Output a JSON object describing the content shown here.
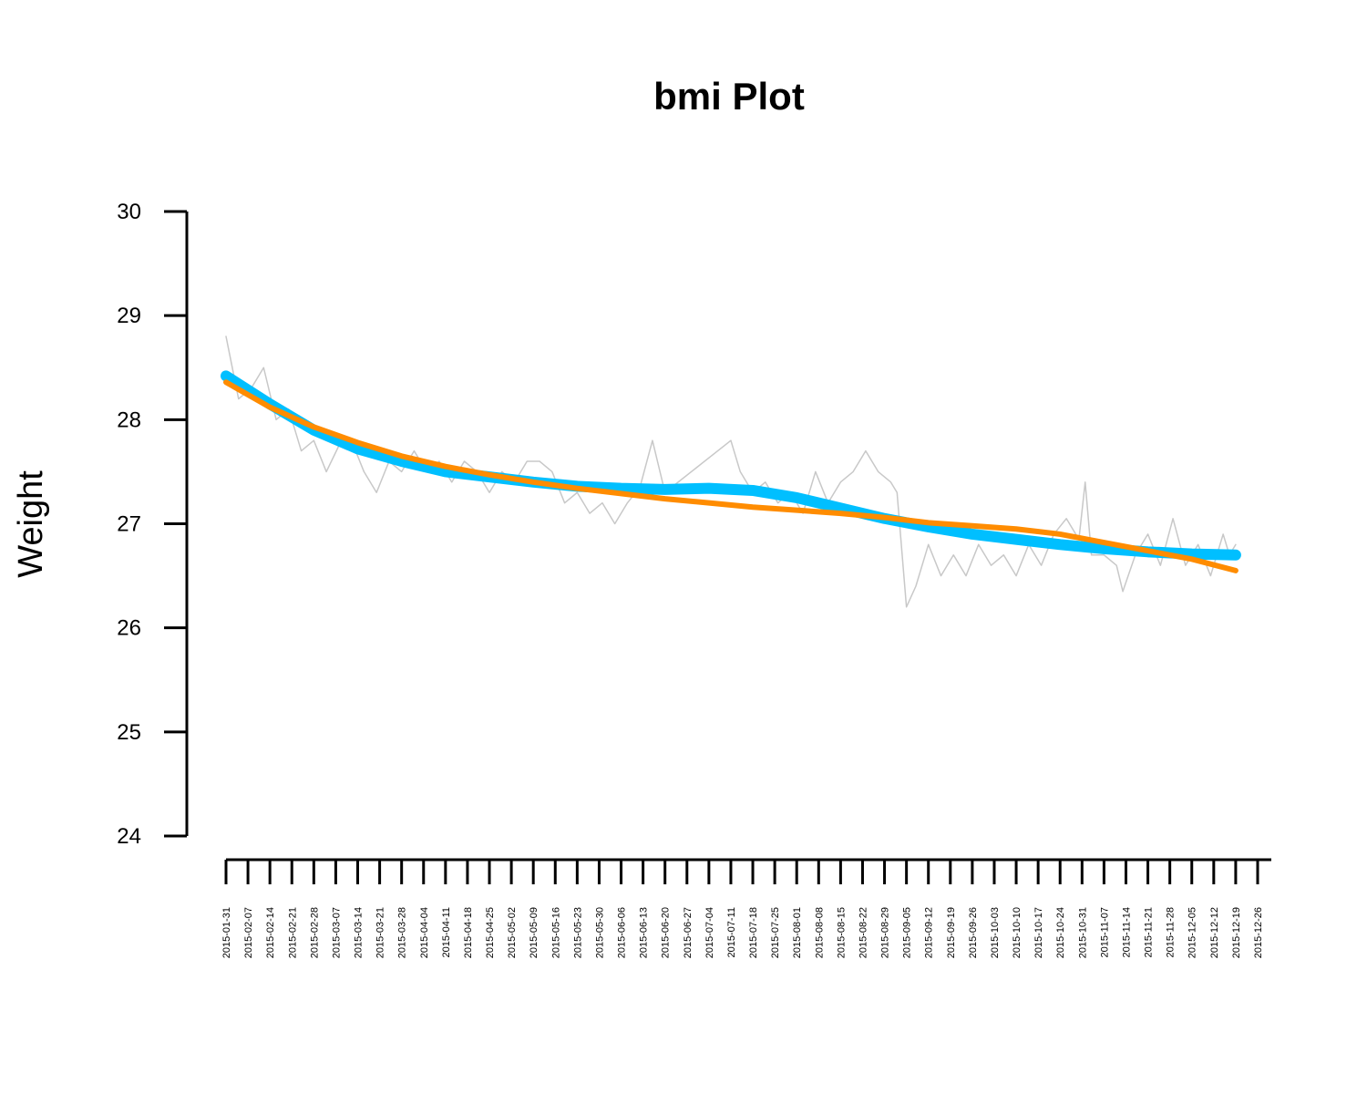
{
  "chart_data": {
    "type": "line",
    "title": "bmi Plot",
    "y_label": "Weight",
    "ylim": [
      24,
      30
    ],
    "yticks": [
      24,
      25,
      26,
      27,
      28,
      29,
      30
    ],
    "xlim": [
      "2015-01-31",
      "2015-12-26"
    ],
    "xticks": [
      "2015-01-31",
      "2015-02-07",
      "2015-02-14",
      "2015-02-21",
      "2015-02-28",
      "2015-03-07",
      "2015-03-14",
      "2015-03-21",
      "2015-03-28",
      "2015-04-04",
      "2015-04-11",
      "2015-04-18",
      "2015-04-25",
      "2015-05-02",
      "2015-05-09",
      "2015-05-16",
      "2015-05-23",
      "2015-05-30",
      "2015-06-06",
      "2015-06-13",
      "2015-06-20",
      "2015-06-27",
      "2015-07-04",
      "2015-07-11",
      "2015-07-18",
      "2015-07-25",
      "2015-08-01",
      "2015-08-08",
      "2015-08-15",
      "2015-08-22",
      "2015-08-29",
      "2015-09-05",
      "2015-09-12",
      "2015-09-19",
      "2015-09-26",
      "2015-10-03",
      "2015-10-10",
      "2015-10-17",
      "2015-10-24",
      "2015-10-31",
      "2015-11-07",
      "2015-11-14",
      "2015-11-21",
      "2015-11-28",
      "2015-12-05",
      "2015-12-12",
      "2015-12-19",
      "2015-12-26"
    ],
    "grid": false,
    "series": [
      {
        "color": "#c8c8c8",
        "line_width": 1.5,
        "x": [
          "2015-01-31",
          "2015-02-04",
          "2015-02-08",
          "2015-02-12",
          "2015-02-16",
          "2015-02-20",
          "2015-02-24",
          "2015-02-28",
          "2015-03-04",
          "2015-03-08",
          "2015-03-12",
          "2015-03-16",
          "2015-03-20",
          "2015-03-24",
          "2015-03-28",
          "2015-04-01",
          "2015-04-05",
          "2015-04-09",
          "2015-04-13",
          "2015-04-17",
          "2015-04-21",
          "2015-04-25",
          "2015-04-29",
          "2015-05-03",
          "2015-05-07",
          "2015-05-11",
          "2015-05-15",
          "2015-05-19",
          "2015-05-23",
          "2015-05-27",
          "2015-05-31",
          "2015-06-04",
          "2015-06-08",
          "2015-06-12",
          "2015-06-16",
          "2015-06-20",
          "2015-07-11",
          "2015-07-14",
          "2015-07-18",
          "2015-07-22",
          "2015-07-26",
          "2015-07-30",
          "2015-08-03",
          "2015-08-07",
          "2015-08-11",
          "2015-08-15",
          "2015-08-19",
          "2015-08-23",
          "2015-08-27",
          "2015-08-31",
          "2015-09-02",
          "2015-09-05",
          "2015-09-08",
          "2015-09-12",
          "2015-09-16",
          "2015-09-20",
          "2015-09-24",
          "2015-09-28",
          "2015-10-02",
          "2015-10-06",
          "2015-10-10",
          "2015-10-14",
          "2015-10-18",
          "2015-10-22",
          "2015-10-26",
          "2015-10-30",
          "2015-11-01",
          "2015-11-03",
          "2015-11-07",
          "2015-11-11",
          "2015-11-13",
          "2015-11-17",
          "2015-11-21",
          "2015-11-25",
          "2015-11-29",
          "2015-12-03",
          "2015-12-07",
          "2015-12-11",
          "2015-12-15",
          "2015-12-17",
          "2015-12-19"
        ],
        "values": [
          28.8,
          28.2,
          28.3,
          28.5,
          28.0,
          28.1,
          27.7,
          27.8,
          27.5,
          27.75,
          27.8,
          27.5,
          27.3,
          27.6,
          27.5,
          27.7,
          27.5,
          27.6,
          27.4,
          27.6,
          27.5,
          27.3,
          27.5,
          27.4,
          27.6,
          27.6,
          27.5,
          27.2,
          27.3,
          27.1,
          27.2,
          27.0,
          27.2,
          27.35,
          27.8,
          27.3,
          27.8,
          27.5,
          27.3,
          27.4,
          27.2,
          27.3,
          27.1,
          27.5,
          27.2,
          27.4,
          27.5,
          27.7,
          27.5,
          27.4,
          27.3,
          26.2,
          26.4,
          26.8,
          26.5,
          26.7,
          26.5,
          26.8,
          26.6,
          26.7,
          26.5,
          26.8,
          26.6,
          26.9,
          27.05,
          26.85,
          27.4,
          26.7,
          26.7,
          26.6,
          26.35,
          26.7,
          26.9,
          26.6,
          27.05,
          26.6,
          26.8,
          26.5,
          26.9,
          26.7,
          26.8
        ]
      },
      {
        "color": "#00bfff",
        "line_width": 12,
        "x": [
          "2015-01-31",
          "2015-02-14",
          "2015-02-28",
          "2015-03-14",
          "2015-03-28",
          "2015-04-11",
          "2015-04-25",
          "2015-05-09",
          "2015-05-23",
          "2015-06-06",
          "2015-06-20",
          "2015-07-04",
          "2015-07-18",
          "2015-08-01",
          "2015-08-15",
          "2015-08-29",
          "2015-09-12",
          "2015-09-26",
          "2015-10-10",
          "2015-10-24",
          "2015-11-07",
          "2015-11-21",
          "2015-12-05",
          "2015-12-19"
        ],
        "values": [
          28.42,
          28.15,
          27.9,
          27.72,
          27.6,
          27.5,
          27.45,
          27.4,
          27.36,
          27.34,
          27.33,
          27.34,
          27.32,
          27.25,
          27.15,
          27.05,
          26.97,
          26.9,
          26.85,
          26.8,
          26.76,
          26.73,
          26.71,
          26.7
        ]
      },
      {
        "color": "#ff8c00",
        "line_width": 6,
        "x": [
          "2015-01-31",
          "2015-02-14",
          "2015-02-28",
          "2015-03-14",
          "2015-03-28",
          "2015-04-11",
          "2015-04-25",
          "2015-05-09",
          "2015-05-23",
          "2015-06-06",
          "2015-06-20",
          "2015-07-04",
          "2015-07-18",
          "2015-08-01",
          "2015-08-15",
          "2015-08-29",
          "2015-09-12",
          "2015-09-26",
          "2015-10-10",
          "2015-10-24",
          "2015-11-07",
          "2015-11-21",
          "2015-12-05",
          "2015-12-19"
        ],
        "values": [
          28.36,
          28.12,
          27.93,
          27.78,
          27.65,
          27.55,
          27.47,
          27.4,
          27.34,
          27.29,
          27.24,
          27.2,
          27.16,
          27.13,
          27.1,
          27.06,
          27.01,
          26.98,
          26.95,
          26.9,
          26.82,
          26.74,
          26.66,
          26.55
        ]
      }
    ]
  }
}
